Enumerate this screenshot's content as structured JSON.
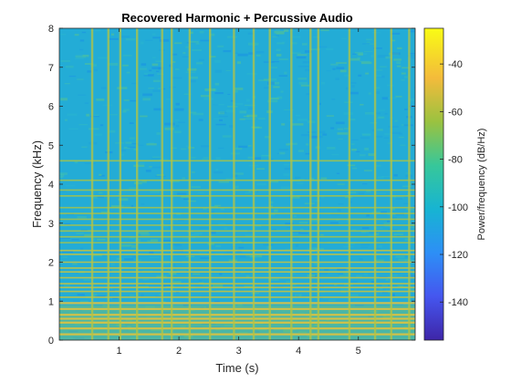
{
  "chart_data": {
    "type": "heatmap",
    "title": "Recovered Harmonic + Percussive Audio",
    "xlabel": "Time (s)",
    "ylabel": "Frequency (kHz)",
    "colorbar_label": "Power/frequency (dB/Hz)",
    "xlim": [
      0.0,
      5.95
    ],
    "ylim": [
      0,
      8
    ],
    "clim": [
      -156,
      -25
    ],
    "x_ticks": [
      1,
      2,
      3,
      4,
      5
    ],
    "y_ticks": [
      0,
      1,
      2,
      3,
      4,
      5,
      6,
      7,
      8
    ],
    "colorbar_ticks": [
      -140,
      -120,
      -100,
      -80,
      -60,
      -40
    ],
    "colormap": "parula",
    "grid": false,
    "harmonic_lines_khz": [
      0.15,
      0.3,
      0.45,
      0.55,
      0.65,
      0.8,
      0.95,
      1.1,
      1.25,
      1.35,
      1.45,
      1.6,
      1.75,
      1.85,
      2.0,
      2.2,
      2.3,
      2.5,
      2.65,
      2.8,
      2.95,
      3.1,
      3.25,
      3.4,
      3.7,
      3.85,
      4.1,
      4.6
    ],
    "percussive_onsets_s": [
      0.55,
      0.82,
      1.02,
      1.3,
      1.72,
      1.88,
      2.18,
      2.52,
      2.92,
      3.25,
      3.52,
      3.88,
      4.2,
      4.33,
      4.85,
      5.28,
      5.55,
      5.85
    ]
  }
}
